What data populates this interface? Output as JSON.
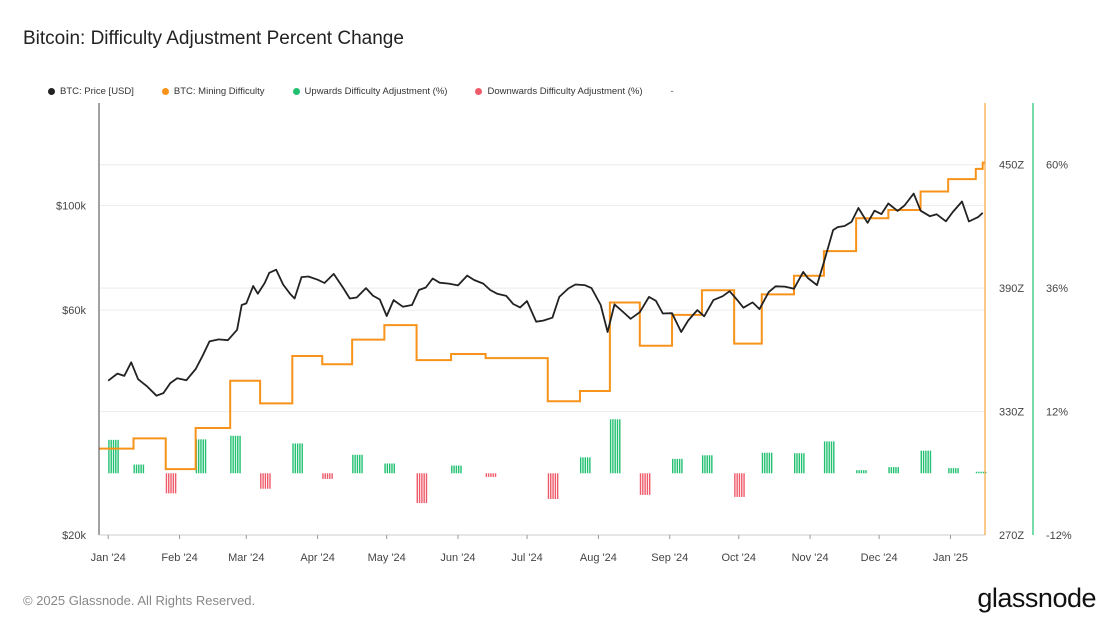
{
  "title": "Bitcoin: Difficulty Adjustment Percent Change",
  "legend": [
    {
      "label": "BTC: Price [USD]",
      "color": "#222222"
    },
    {
      "label": "BTC: Mining Difficulty",
      "color": "#f7931a"
    },
    {
      "label": "Upwards Difficulty Adjustment (%)",
      "color": "#20c070"
    },
    {
      "label": "Downwards Difficulty Adjustment (%)",
      "color": "#ef5a6a"
    }
  ],
  "legend_extra": "-",
  "footer": "© 2025 Glassnode. All Rights Reserved.",
  "brand": "glassnode",
  "chart_data": {
    "type": "line",
    "x_ticks": [
      "Jan '24",
      "Feb '24",
      "Mar '24",
      "Apr '24",
      "May '24",
      "Jun '24",
      "Jul '24",
      "Aug '24",
      "Sep '24",
      "Oct '24",
      "Nov '24",
      "Dec '24",
      "Jan '25"
    ],
    "y_left": {
      "ticks": [
        "$20k",
        "$60k",
        "$100k"
      ],
      "values": [
        20000,
        60000,
        100000
      ],
      "scale": "log"
    },
    "y_right_difficulty": {
      "ticks": [
        "270Z",
        "330Z",
        "390Z",
        "450Z"
      ],
      "values": [
        270,
        330,
        390,
        450
      ],
      "range": [
        270,
        480
      ]
    },
    "y_right_percent": {
      "ticks": [
        "-12%",
        "12%",
        "36%",
        "60%"
      ],
      "values": [
        -12,
        12,
        36,
        60
      ],
      "range": [
        -12,
        72
      ]
    },
    "series": [
      {
        "name": "BTC: Price [USD]",
        "color": "#222222",
        "points": [
          [
            "2024-01-01",
            42500
          ],
          [
            "2024-01-05",
            44000
          ],
          [
            "2024-01-08",
            43500
          ],
          [
            "2024-01-11",
            46500
          ],
          [
            "2024-01-14",
            42800
          ],
          [
            "2024-01-18",
            41300
          ],
          [
            "2024-01-22",
            39500
          ],
          [
            "2024-01-25",
            40000
          ],
          [
            "2024-01-28",
            42000
          ],
          [
            "2024-01-31",
            43000
          ],
          [
            "2024-02-04",
            42600
          ],
          [
            "2024-02-08",
            45000
          ],
          [
            "2024-02-11",
            48000
          ],
          [
            "2024-02-14",
            51500
          ],
          [
            "2024-02-18",
            52000
          ],
          [
            "2024-02-22",
            51800
          ],
          [
            "2024-02-26",
            54500
          ],
          [
            "2024-02-28",
            61500
          ],
          [
            "2024-03-01",
            62000
          ],
          [
            "2024-03-04",
            67500
          ],
          [
            "2024-03-06",
            65000
          ],
          [
            "2024-03-09",
            68500
          ],
          [
            "2024-03-11",
            72000
          ],
          [
            "2024-03-14",
            73100
          ],
          [
            "2024-03-17",
            68000
          ],
          [
            "2024-03-20",
            65000
          ],
          [
            "2024-03-22",
            63500
          ],
          [
            "2024-03-25",
            70500
          ],
          [
            "2024-03-28",
            70700
          ],
          [
            "2024-04-01",
            69600
          ],
          [
            "2024-04-04",
            68500
          ],
          [
            "2024-04-08",
            71600
          ],
          [
            "2024-04-12",
            67000
          ],
          [
            "2024-04-15",
            63500
          ],
          [
            "2024-04-18",
            63800
          ],
          [
            "2024-04-22",
            66800
          ],
          [
            "2024-04-25",
            64400
          ],
          [
            "2024-04-28",
            63200
          ],
          [
            "2024-05-01",
            58300
          ],
          [
            "2024-05-04",
            63000
          ],
          [
            "2024-05-08",
            61000
          ],
          [
            "2024-05-12",
            61500
          ],
          [
            "2024-05-15",
            66200
          ],
          [
            "2024-05-18",
            67000
          ],
          [
            "2024-05-21",
            70000
          ],
          [
            "2024-05-24",
            68600
          ],
          [
            "2024-05-28",
            68300
          ],
          [
            "2024-06-01",
            67700
          ],
          [
            "2024-06-05",
            71000
          ],
          [
            "2024-06-08",
            69500
          ],
          [
            "2024-06-12",
            68300
          ],
          [
            "2024-06-15",
            66200
          ],
          [
            "2024-06-18",
            65000
          ],
          [
            "2024-06-22",
            64300
          ],
          [
            "2024-06-25",
            61800
          ],
          [
            "2024-06-28",
            60800
          ],
          [
            "2024-07-01",
            62700
          ],
          [
            "2024-07-05",
            56700
          ],
          [
            "2024-07-08",
            57000
          ],
          [
            "2024-07-12",
            57800
          ],
          [
            "2024-07-15",
            64000
          ],
          [
            "2024-07-19",
            66700
          ],
          [
            "2024-07-22",
            68000
          ],
          [
            "2024-07-26",
            67800
          ],
          [
            "2024-07-29",
            66800
          ],
          [
            "2024-08-02",
            61500
          ],
          [
            "2024-08-05",
            53900
          ],
          [
            "2024-08-08",
            61700
          ],
          [
            "2024-08-12",
            59300
          ],
          [
            "2024-08-15",
            57500
          ],
          [
            "2024-08-19",
            59400
          ],
          [
            "2024-08-23",
            64000
          ],
          [
            "2024-08-26",
            62800
          ],
          [
            "2024-08-29",
            59000
          ],
          [
            "2024-09-02",
            59100
          ],
          [
            "2024-09-06",
            53900
          ],
          [
            "2024-09-09",
            57000
          ],
          [
            "2024-09-13",
            60000
          ],
          [
            "2024-09-16",
            58200
          ],
          [
            "2024-09-20",
            63000
          ],
          [
            "2024-09-24",
            64200
          ],
          [
            "2024-09-27",
            65800
          ],
          [
            "2024-09-30",
            63300
          ],
          [
            "2024-10-03",
            60700
          ],
          [
            "2024-10-07",
            62300
          ],
          [
            "2024-10-10",
            60300
          ],
          [
            "2024-10-14",
            65500
          ],
          [
            "2024-10-17",
            67400
          ],
          [
            "2024-10-21",
            67300
          ],
          [
            "2024-10-25",
            66600
          ],
          [
            "2024-10-29",
            72300
          ],
          [
            "2024-10-31",
            70200
          ],
          [
            "2024-11-04",
            67800
          ],
          [
            "2024-11-07",
            75800
          ],
          [
            "2024-11-11",
            88700
          ],
          [
            "2024-11-13",
            90000
          ],
          [
            "2024-11-16",
            90500
          ],
          [
            "2024-11-19",
            92300
          ],
          [
            "2024-11-22",
            98800
          ],
          [
            "2024-11-26",
            91900
          ],
          [
            "2024-11-29",
            97500
          ],
          [
            "2024-12-02",
            95900
          ],
          [
            "2024-12-05",
            101000
          ],
          [
            "2024-12-09",
            97400
          ],
          [
            "2024-12-12",
            100000
          ],
          [
            "2024-12-16",
            106000
          ],
          [
            "2024-12-19",
            97500
          ],
          [
            "2024-12-23",
            94900
          ],
          [
            "2024-12-26",
            95800
          ],
          [
            "2024-12-30",
            92600
          ],
          [
            "2025-01-02",
            96900
          ],
          [
            "2025-01-06",
            102000
          ],
          [
            "2025-01-09",
            92500
          ],
          [
            "2025-01-13",
            94500
          ],
          [
            "2025-01-15",
            96500
          ]
        ]
      },
      {
        "name": "BTC: Mining Difficulty",
        "color": "#f7931a",
        "steps": [
          [
            "2024-01-01",
            312
          ],
          [
            "2024-01-12",
            317
          ],
          [
            "2024-01-26",
            302
          ],
          [
            "2024-02-08",
            322
          ],
          [
            "2024-02-23",
            345
          ],
          [
            "2024-03-07",
            334
          ],
          [
            "2024-03-21",
            357
          ],
          [
            "2024-04-03",
            353
          ],
          [
            "2024-04-16",
            365
          ],
          [
            "2024-04-30",
            372
          ],
          [
            "2024-05-14",
            355
          ],
          [
            "2024-05-29",
            358
          ],
          [
            "2024-06-13",
            356
          ],
          [
            "2024-06-26",
            356
          ],
          [
            "2024-07-10",
            335
          ],
          [
            "2024-07-24",
            340
          ],
          [
            "2024-08-06",
            383
          ],
          [
            "2024-08-19",
            362
          ],
          [
            "2024-09-02",
            377
          ],
          [
            "2024-09-15",
            389
          ],
          [
            "2024-09-29",
            363
          ],
          [
            "2024-10-11",
            387
          ],
          [
            "2024-10-25",
            396
          ],
          [
            "2024-11-07",
            408
          ],
          [
            "2024-11-21",
            424
          ],
          [
            "2024-12-05",
            428
          ],
          [
            "2024-12-19",
            437
          ],
          [
            "2024-12-31",
            443
          ],
          [
            "2025-01-12",
            448
          ],
          [
            "2025-01-15",
            451
          ]
        ]
      },
      {
        "name": "Upwards Difficulty Adjustment (%)",
        "color": "#20c070",
        "bars": [
          [
            "2024-01-01",
            6.5
          ],
          [
            "2024-01-12",
            1.7
          ],
          [
            "2024-02-08",
            6.6
          ],
          [
            "2024-02-23",
            7.3
          ],
          [
            "2024-03-21",
            5.8
          ],
          [
            "2024-04-16",
            3.6
          ],
          [
            "2024-04-30",
            1.9
          ],
          [
            "2024-05-29",
            1.5
          ],
          [
            "2024-07-24",
            3.1
          ],
          [
            "2024-08-06",
            10.5
          ],
          [
            "2024-09-02",
            2.8
          ],
          [
            "2024-09-15",
            3.5
          ],
          [
            "2024-10-11",
            4.0
          ],
          [
            "2024-10-25",
            3.9
          ],
          [
            "2024-11-07",
            6.2
          ],
          [
            "2024-11-21",
            0.6
          ],
          [
            "2024-12-05",
            1.2
          ],
          [
            "2024-12-19",
            4.4
          ],
          [
            "2024-12-31",
            1.0
          ],
          [
            "2025-01-12",
            0.3
          ]
        ]
      },
      {
        "name": "Downwards Difficulty Adjustment (%)",
        "color": "#ef5a6a",
        "bars": [
          [
            "2024-01-26",
            -3.9
          ],
          [
            "2024-03-07",
            -3.0
          ],
          [
            "2024-04-03",
            -1.1
          ],
          [
            "2024-05-14",
            -5.8
          ],
          [
            "2024-06-13",
            -0.7
          ],
          [
            "2024-07-10",
            -5.0
          ],
          [
            "2024-08-19",
            -4.2
          ],
          [
            "2024-09-29",
            -4.6
          ]
        ]
      }
    ]
  }
}
